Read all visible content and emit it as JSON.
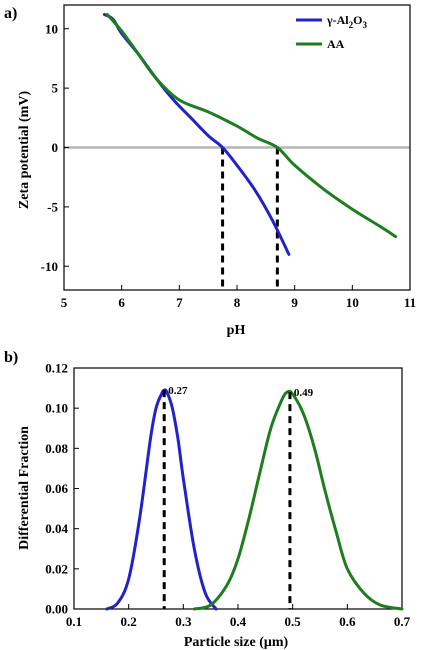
{
  "chart_data": [
    {
      "type": "line",
      "panel_label": "a)",
      "xlabel": "pH",
      "ylabel": "Zeta potential (mV)",
      "xlim": [
        5,
        11
      ],
      "ylim": [
        -12,
        12
      ],
      "x_ticks": [
        "5",
        "6",
        "7",
        "8",
        "9",
        "10",
        "11"
      ],
      "y_ticks": [
        "10",
        "5",
        "0",
        "-5",
        "-10"
      ],
      "legend_position": "top-right",
      "zero_line": true,
      "series": [
        {
          "name": "γ-Al₂O₃",
          "name_parts": [
            "γ-Al",
            "2",
            "O",
            "3"
          ],
          "color": "#2222cc",
          "x": [
            5.7,
            5.85,
            6.0,
            6.3,
            6.6,
            6.9,
            7.2,
            7.5,
            7.75,
            8.0,
            8.3,
            8.6,
            8.9
          ],
          "y": [
            11.2,
            10.8,
            9.6,
            7.8,
            5.8,
            4.0,
            2.5,
            1.0,
            0.0,
            -1.5,
            -3.5,
            -6.0,
            -9.0
          ]
        },
        {
          "name": "AA",
          "color": "#1e7d1e",
          "x": [
            5.75,
            6.0,
            6.3,
            6.6,
            7.0,
            7.5,
            8.0,
            8.35,
            8.7,
            9.0,
            9.5,
            10.0,
            10.5,
            10.75
          ],
          "y": [
            11.2,
            9.8,
            7.8,
            5.8,
            4.0,
            3.0,
            1.8,
            0.8,
            0.0,
            -1.5,
            -3.5,
            -5.2,
            -6.7,
            -7.5
          ]
        }
      ],
      "markers": [
        {
          "x": 7.75,
          "y_from": -12,
          "y_to": 0
        },
        {
          "x": 8.7,
          "y_from": -12,
          "y_to": 0
        }
      ]
    },
    {
      "type": "line",
      "panel_label": "b)",
      "xlabel": "Particle size (μm)",
      "ylabel": "Differential Fraction",
      "xlim": [
        0.1,
        0.7
      ],
      "ylim": [
        0.0,
        0.12
      ],
      "x_ticks": [
        "0.1",
        "0.2",
        "0.3",
        "0.4",
        "0.5",
        "0.6",
        "0.7"
      ],
      "y_ticks": [
        "0.00",
        "0.02",
        "0.04",
        "0.06",
        "0.08",
        "0.10",
        "0.12"
      ],
      "series": [
        {
          "color": "#2222cc",
          "x": [
            0.16,
            0.18,
            0.2,
            0.22,
            0.24,
            0.25,
            0.26,
            0.265,
            0.27,
            0.28,
            0.29,
            0.3,
            0.32,
            0.34,
            0.36
          ],
          "y": [
            0.0,
            0.003,
            0.015,
            0.045,
            0.085,
            0.1,
            0.107,
            0.109,
            0.108,
            0.1,
            0.085,
            0.065,
            0.03,
            0.008,
            0.0
          ]
        },
        {
          "color": "#1e7d1e",
          "x": [
            0.32,
            0.35,
            0.38,
            0.4,
            0.42,
            0.44,
            0.46,
            0.48,
            0.49,
            0.5,
            0.52,
            0.54,
            0.56,
            0.58,
            0.6,
            0.63,
            0.66,
            0.7
          ],
          "y": [
            0.0,
            0.002,
            0.012,
            0.025,
            0.045,
            0.068,
            0.09,
            0.104,
            0.108,
            0.107,
            0.097,
            0.08,
            0.058,
            0.038,
            0.02,
            0.008,
            0.002,
            0.0
          ]
        }
      ],
      "peak_markers": [
        {
          "x": 0.265,
          "y": 0.109,
          "label": "0.27"
        },
        {
          "x": 0.495,
          "y": 0.108,
          "label": "0.49"
        }
      ]
    }
  ]
}
